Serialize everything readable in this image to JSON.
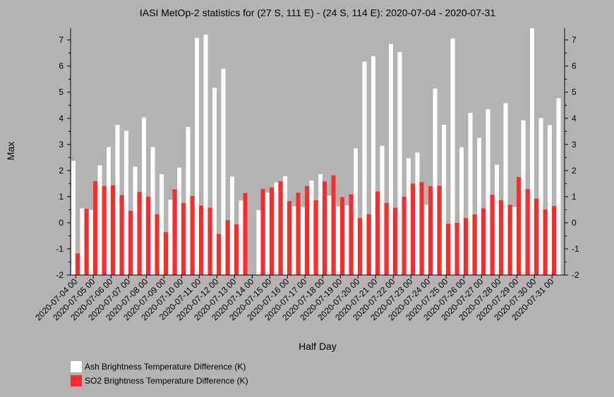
{
  "chart_data": {
    "type": "bar",
    "title": "IASI MetOp-2 statistics for (27 S, 111 E) - (24 S, 114 E): 2020-07-04 - 2020-07-31",
    "xlabel": "Half Day",
    "ylabel": "Max",
    "ylim": [
      -2,
      7.45
    ],
    "yticks": [
      -2,
      -1,
      0,
      1,
      2,
      3,
      4,
      5,
      6,
      7
    ],
    "ytick_labels": [
      "-2",
      "-1",
      "0",
      "1",
      "2",
      "3",
      "4",
      "5",
      "6",
      "7"
    ],
    "categories": [
      "2020-07-04 00",
      "2020-07-04 12",
      "2020-07-05 00",
      "2020-07-05 12",
      "2020-07-06 00",
      "2020-07-06 12",
      "2020-07-07 00",
      "2020-07-07 12",
      "2020-07-08 00",
      "2020-07-08 12",
      "2020-07-09 00",
      "2020-07-09 12",
      "2020-07-10 00",
      "2020-07-10 12",
      "2020-07-11 00",
      "2020-07-11 12",
      "2020-07-12 00",
      "2020-07-12 12",
      "2020-07-13 00",
      "2020-07-13 12",
      "2020-07-14 00",
      "2020-07-14 12",
      "2020-07-15 00",
      "2020-07-15 12",
      "2020-07-16 00",
      "2020-07-16 12",
      "2020-07-17 00",
      "2020-07-17 12",
      "2020-07-18 00",
      "2020-07-18 12",
      "2020-07-19 00",
      "2020-07-19 12",
      "2020-07-20 00",
      "2020-07-20 12",
      "2020-07-21 00",
      "2020-07-21 12",
      "2020-07-22 00",
      "2020-07-22 12",
      "2020-07-23 00",
      "2020-07-23 12",
      "2020-07-24 00",
      "2020-07-24 12",
      "2020-07-25 00",
      "2020-07-25 12",
      "2020-07-26 00",
      "2020-07-26 12",
      "2020-07-27 00",
      "2020-07-27 12",
      "2020-07-28 00",
      "2020-07-28 12",
      "2020-07-29 00",
      "2020-07-29 12",
      "2020-07-30 00",
      "2020-07-30 12",
      "2020-07-31 00",
      "2020-07-31 12"
    ],
    "xtick_labels": [
      "2020-07-04 00",
      "2020-07-05 00",
      "2020-07-06 00",
      "2020-07-07 00",
      "2020-07-08 00",
      "2020-07-09 00",
      "2020-07-10 00",
      "2020-07-11 00",
      "2020-07-12 00",
      "2020-07-13 00",
      "2020-07-14 00",
      "2020-07-15 00",
      "2020-07-16 00",
      "2020-07-17 00",
      "2020-07-18 00",
      "2020-07-19 00",
      "2020-07-20 00",
      "2020-07-21 00",
      "2020-07-22 00",
      "2020-07-23 00",
      "2020-07-24 00",
      "2020-07-25 00",
      "2020-07-26 00",
      "2020-07-27 00",
      "2020-07-28 00",
      "2020-07-29 00",
      "2020-07-30 00",
      "2020-07-31 00"
    ],
    "series": [
      {
        "name": "Ash Brightness Temperature Difference (K)",
        "color": "#ffffff",
        "values": [
          2.37,
          0.55,
          0.49,
          2.2,
          2.9,
          3.75,
          3.52,
          2.15,
          4.03,
          2.9,
          1.86,
          0.88,
          2.11,
          3.67,
          7.08,
          7.2,
          5.17,
          5.9,
          1.77,
          0.85,
          null,
          0.48,
          1.16,
          1.55,
          1.78,
          0.63,
          0.6,
          1.62,
          1.86,
          1.04,
          0.63,
          0.67,
          2.85,
          6.17,
          6.38,
          2.95,
          6.84,
          6.54,
          2.47,
          2.69,
          0.69,
          5.14,
          3.75,
          7.06,
          2.89,
          4.21,
          3.25,
          4.35,
          2.22,
          4.58,
          0.6,
          3.92,
          7.45,
          4.01,
          3.74,
          4.77
        ]
      },
      {
        "name": "SO2 Brightness Temperature Difference (K)",
        "color": "#ff2a2a",
        "values": [
          -1.17,
          0.54,
          1.59,
          1.41,
          1.44,
          1.06,
          0.46,
          1.18,
          1.0,
          0.33,
          -0.36,
          1.28,
          0.76,
          1.02,
          0.66,
          0.58,
          -0.43,
          0.1,
          -0.06,
          1.14,
          null,
          1.3,
          1.35,
          1.59,
          0.83,
          1.15,
          1.41,
          0.86,
          1.58,
          1.82,
          0.98,
          1.09,
          0.18,
          0.33,
          1.2,
          0.76,
          0.58,
          1.0,
          1.5,
          1.56,
          1.4,
          1.42,
          -0.04,
          0.0,
          0.18,
          0.32,
          0.55,
          1.07,
          0.87,
          0.69,
          1.75,
          1.29,
          0.92,
          0.51,
          0.64,
          null
        ]
      }
    ],
    "legend_position": "bottom-left",
    "grid": false
  }
}
